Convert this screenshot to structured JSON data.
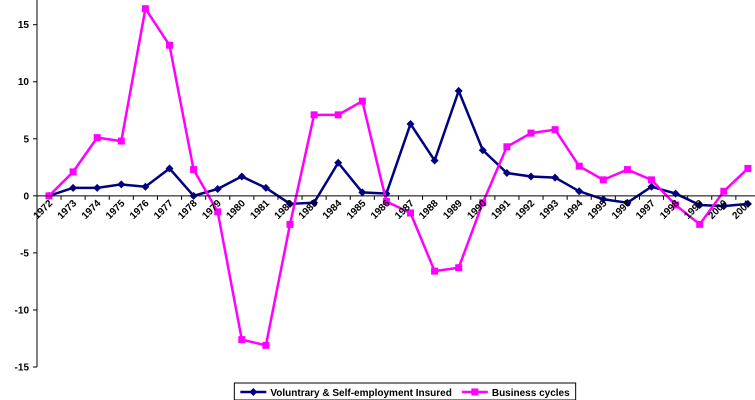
{
  "chart_data": {
    "type": "line",
    "categories": [
      "1972",
      "1973",
      "1974",
      "1975",
      "1976",
      "1977",
      "1978",
      "1979",
      "1980",
      "1981",
      "1982",
      "1983",
      "1984",
      "1985",
      "1986",
      "1987",
      "1988",
      "1989",
      "1990",
      "1991",
      "1992",
      "1993",
      "1994",
      "1995",
      "1996",
      "1997",
      "1998",
      "1999",
      "2000",
      "2001"
    ],
    "series": [
      {
        "name": "Voluntrary & Self-employment Insured",
        "color": "#000080",
        "marker": "diamond",
        "values": [
          0,
          0.7,
          0.7,
          1.0,
          0.8,
          2.4,
          0,
          0.6,
          1.7,
          0.7,
          -0.7,
          -0.6,
          2.9,
          0.3,
          0.2,
          6.3,
          3.1,
          9.2,
          4.0,
          2.0,
          1.7,
          1.6,
          0.4,
          -0.3,
          -0.6,
          0.8,
          0.2,
          -0.8,
          -0.9,
          -0.7
        ]
      },
      {
        "name": "Business cycles",
        "color": "#ff00ff",
        "marker": "square",
        "values": [
          0,
          2.1,
          5.1,
          4.8,
          16.4,
          13.2,
          2.3,
          -1.4,
          -12.6,
          -13.1,
          -2.5,
          7.1,
          7.1,
          8.3,
          -0.5,
          -1.5,
          -6.6,
          -6.3,
          -0.6,
          4.3,
          5.5,
          5.8,
          2.6,
          1.4,
          2.3,
          1.4,
          -0.8,
          -2.5,
          0.4,
          2.4
        ]
      }
    ],
    "ylim": [
      -15,
      16.2
    ],
    "yticks": [
      -15,
      -10,
      -5,
      0,
      5,
      10,
      15
    ],
    "legend": "bottom"
  }
}
